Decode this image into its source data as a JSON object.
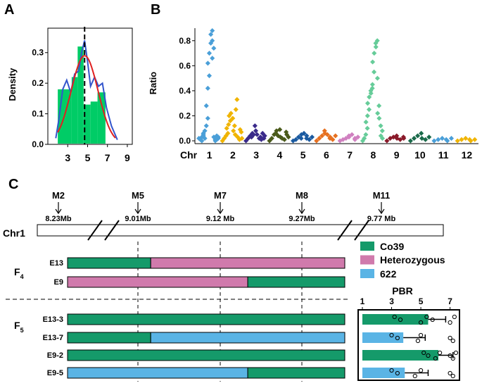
{
  "chart_data": [
    {
      "id": "A",
      "type": "histogram",
      "panel_label": "A",
      "ylabel": "Density",
      "xlim": [
        1,
        9.5
      ],
      "ylim": [
        0,
        0.38
      ],
      "xticks": [
        3,
        5,
        7,
        9
      ],
      "yticks": [
        0.0,
        0.1,
        0.2,
        0.3
      ],
      "ytick_labels": [
        "0.0",
        "0.1",
        "0.2",
        "0.3"
      ],
      "bins": [
        {
          "x0": 2,
          "x1": 3.4,
          "density": 0.18
        },
        {
          "x0": 3.4,
          "x1": 4.0,
          "density": 0.22
        },
        {
          "x0": 4.0,
          "x1": 4.6,
          "density": 0.32
        },
        {
          "x0": 4.6,
          "x1": 5.3,
          "density": 0.13
        },
        {
          "x0": 5.3,
          "x1": 6.0,
          "density": 0.14
        },
        {
          "x0": 6.0,
          "x1": 6.8,
          "density": 0.17
        }
      ],
      "mean_line": 4.7,
      "bar_color": "#00cc66",
      "normal_color": "#e02020",
      "kde_color": "#3355cc",
      "normal_fit": {
        "mean": 4.7,
        "sd": 1.35,
        "peak": 0.29
      },
      "kde": [
        [
          1.8,
          0.02
        ],
        [
          2.1,
          0.08
        ],
        [
          2.5,
          0.18
        ],
        [
          2.9,
          0.21
        ],
        [
          3.3,
          0.17
        ],
        [
          3.7,
          0.23
        ],
        [
          4.1,
          0.24
        ],
        [
          4.4,
          0.3
        ],
        [
          4.7,
          0.34
        ],
        [
          5.0,
          0.27
        ],
        [
          5.3,
          0.19
        ],
        [
          5.7,
          0.22
        ],
        [
          6.1,
          0.19
        ],
        [
          6.5,
          0.2
        ],
        [
          6.9,
          0.12
        ],
        [
          7.4,
          0.06
        ],
        [
          8.0,
          0.015
        ]
      ]
    },
    {
      "id": "B",
      "type": "scatter",
      "panel_label": "B",
      "ylabel": "Ratio",
      "xlabel": "Chr",
      "ylim": [
        0,
        0.9
      ],
      "yticks": [
        0.0,
        0.2,
        0.4,
        0.6,
        0.8
      ],
      "ytick_labels": [
        "0.0",
        "0.2",
        "0.4",
        "0.6",
        "0.8"
      ],
      "chromosomes": [
        {
          "name": "1",
          "color": "#4a9fd8",
          "points": [
            0.02,
            0.01,
            0.03,
            0.05,
            0.0,
            0.04,
            0.02,
            0.06,
            0.08,
            0.12,
            0.18,
            0.28,
            0.42,
            0.52,
            0.62,
            0.7,
            0.78,
            0.8,
            0.85,
            0.88,
            0.74,
            0.66,
            0.03,
            0.01,
            0.02,
            0.0,
            0.04,
            0.02,
            0.01,
            0.03
          ]
        },
        {
          "name": "2",
          "color": "#f0b400",
          "points": [
            0.0,
            0.02,
            0.04,
            0.06,
            0.1,
            0.13,
            0.16,
            0.2,
            0.22,
            0.18,
            0.12,
            0.08,
            0.05,
            0.33,
            0.25,
            0.03,
            0.01,
            0.07,
            0.09,
            0.02
          ]
        },
        {
          "name": "3",
          "color": "#3a2a8a",
          "points": [
            0.0,
            0.02,
            0.04,
            0.06,
            0.03,
            0.05,
            0.08,
            0.12,
            0.05,
            0.02,
            0.01,
            0.03,
            0.06,
            0.04,
            0.02
          ]
        },
        {
          "name": "4",
          "color": "#4a5a1a",
          "points": [
            0.0,
            0.02,
            0.05,
            0.08,
            0.06,
            0.04,
            0.03,
            0.09,
            0.02,
            0.01,
            0.05,
            0.07,
            0.03
          ]
        },
        {
          "name": "5",
          "color": "#1a5aa0",
          "points": [
            0.0,
            0.01,
            0.03,
            0.05,
            0.02,
            0.06,
            0.04,
            0.02,
            0.01,
            0.03
          ]
        },
        {
          "name": "6",
          "color": "#e67020",
          "points": [
            0.0,
            0.02,
            0.04,
            0.06,
            0.08,
            0.05,
            0.03,
            0.02,
            0.01,
            0.04
          ]
        },
        {
          "name": "7",
          "color": "#d080c0",
          "points": [
            0.0,
            0.01,
            0.02,
            0.04,
            0.03,
            0.05,
            0.02,
            0.01,
            0.03
          ]
        },
        {
          "name": "8",
          "color": "#66cc99",
          "points": [
            0.0,
            0.02,
            0.05,
            0.1,
            0.15,
            0.2,
            0.25,
            0.3,
            0.35,
            0.4,
            0.42,
            0.38,
            0.45,
            0.55,
            0.63,
            0.7,
            0.78,
            0.8,
            0.75,
            0.5,
            0.28,
            0.22,
            0.18,
            0.12,
            0.08,
            0.04,
            0.02
          ]
        },
        {
          "name": "9",
          "color": "#8a1a2a",
          "points": [
            0.0,
            0.02,
            0.03,
            0.04,
            0.02,
            0.01,
            0.03,
            0.02
          ]
        },
        {
          "name": "10",
          "color": "#1a6a4a",
          "points": [
            0.0,
            0.02,
            0.04,
            0.06,
            0.02,
            0.01,
            0.03
          ]
        },
        {
          "name": "11",
          "color": "#4a9fd8",
          "points": [
            0.0,
            0.01,
            0.02,
            0.01,
            0.0,
            0.02
          ]
        },
        {
          "name": "12",
          "color": "#f0b400",
          "points": [
            0.0,
            0.01,
            0.02,
            0.01,
            0.0,
            0.01
          ]
        }
      ]
    },
    {
      "id": "C-PBR",
      "type": "bar",
      "title": "PBR",
      "xticks": [
        1,
        3,
        5,
        7
      ],
      "xlim": [
        1,
        7.5
      ],
      "categories": [
        "E13-3",
        "E13-7",
        "E9-2",
        "E9-5"
      ],
      "values": [
        5.5,
        3.8,
        6.2,
        3.9
      ],
      "errors": [
        1.2,
        1.5,
        1.0,
        1.6
      ],
      "colors": [
        "#159a6a",
        "#5ab4e5",
        "#159a6a",
        "#5ab4e5"
      ],
      "points": [
        [
          3.2,
          3.6,
          5.0,
          5.4,
          5.8,
          7.0,
          7.3
        ],
        [
          3.0,
          3.4,
          4.8,
          5.0,
          7.0,
          7.2
        ],
        [
          5.2,
          5.5,
          6.0,
          6.3,
          7.0,
          7.2,
          7.4
        ],
        [
          3.0,
          3.4,
          4.6,
          5.0,
          7.0,
          7.2
        ]
      ]
    }
  ],
  "panel_c": {
    "label": "C",
    "chr_label": "Chr1",
    "markers": [
      {
        "name": "M2",
        "position": "8.23Mb"
      },
      {
        "name": "M5",
        "position": "9.01Mb"
      },
      {
        "name": "M7",
        "position": "9.12 Mb"
      },
      {
        "name": "M8",
        "position": "9.27Mb"
      },
      {
        "name": "M11",
        "position": "9.77 Mb"
      }
    ],
    "generations": [
      {
        "main": "F",
        "sub": "4"
      },
      {
        "main": "F",
        "sub": "5"
      }
    ],
    "legend": [
      {
        "label": "Co39",
        "color": "#159a6a"
      },
      {
        "label": "Heterozygous",
        "color": "#d07aac"
      },
      {
        "label": "622",
        "color": "#5ab4e5"
      }
    ],
    "lines": [
      {
        "name": "E13",
        "segments": [
          {
            "from": 0,
            "to": 0.3,
            "genotype": "Co39"
          },
          {
            "from": 0.3,
            "to": 1,
            "genotype": "Heterozygous"
          }
        ]
      },
      {
        "name": "E9",
        "segments": [
          {
            "from": 0,
            "to": 0.65,
            "genotype": "Heterozygous"
          },
          {
            "from": 0.65,
            "to": 1,
            "genotype": "Co39"
          }
        ]
      },
      {
        "name": "E13-3",
        "segments": [
          {
            "from": 0,
            "to": 1,
            "genotype": "Co39"
          }
        ]
      },
      {
        "name": "E13-7",
        "segments": [
          {
            "from": 0,
            "to": 0.3,
            "genotype": "Co39"
          },
          {
            "from": 0.3,
            "to": 1,
            "genotype": "622"
          }
        ]
      },
      {
        "name": "E9-2",
        "segments": [
          {
            "from": 0,
            "to": 1,
            "genotype": "Co39"
          }
        ]
      },
      {
        "name": "E9-5",
        "segments": [
          {
            "from": 0,
            "to": 0.65,
            "genotype": "622"
          },
          {
            "from": 0.65,
            "to": 1,
            "genotype": "Co39"
          }
        ]
      }
    ]
  }
}
